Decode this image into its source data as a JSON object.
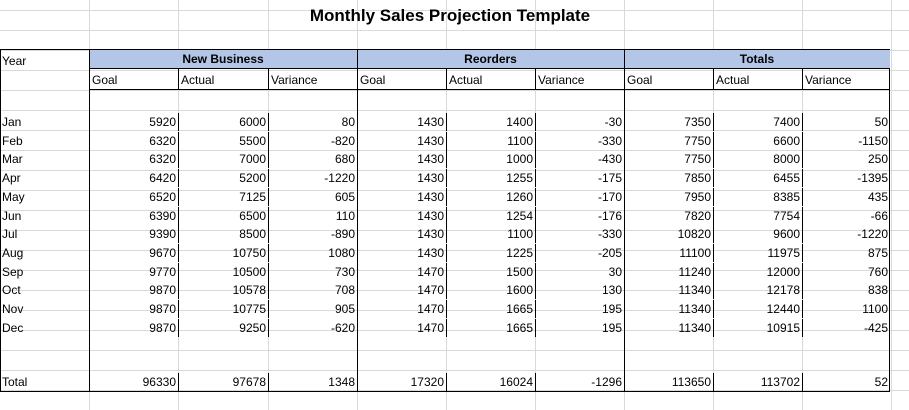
{
  "sheet": {
    "title": "Monthly Sales Projection Template",
    "year_label": "Year",
    "groups": [
      "New Business",
      "Reorders",
      "Totals"
    ],
    "subheaders": [
      "Goal",
      "Actual",
      "Variance"
    ],
    "rows": [
      {
        "month": "Jan",
        "vals": [
          "5920",
          "6000",
          "80",
          "1430",
          "1400",
          "-30",
          "7350",
          "7400",
          "50"
        ]
      },
      {
        "month": "Feb",
        "vals": [
          "6320",
          "5500",
          "-820",
          "1430",
          "1100",
          "-330",
          "7750",
          "6600",
          "-1150"
        ]
      },
      {
        "month": "Mar",
        "vals": [
          "6320",
          "7000",
          "680",
          "1430",
          "1000",
          "-430",
          "7750",
          "8000",
          "250"
        ]
      },
      {
        "month": "Apr",
        "vals": [
          "6420",
          "5200",
          "-1220",
          "1430",
          "1255",
          "-175",
          "7850",
          "6455",
          "-1395"
        ]
      },
      {
        "month": "May",
        "vals": [
          "6520",
          "7125",
          "605",
          "1430",
          "1260",
          "-170",
          "7950",
          "8385",
          "435"
        ]
      },
      {
        "month": "Jun",
        "vals": [
          "6390",
          "6500",
          "110",
          "1430",
          "1254",
          "-176",
          "7820",
          "7754",
          "-66"
        ]
      },
      {
        "month": "Jul",
        "vals": [
          "9390",
          "8500",
          "-890",
          "1430",
          "1100",
          "-330",
          "10820",
          "9600",
          "-1220"
        ]
      },
      {
        "month": "Aug",
        "vals": [
          "9670",
          "10750",
          "1080",
          "1430",
          "1225",
          "-205",
          "11100",
          "11975",
          "875"
        ]
      },
      {
        "month": "Sep",
        "vals": [
          "9770",
          "10500",
          "730",
          "1470",
          "1500",
          "30",
          "11240",
          "12000",
          "760"
        ]
      },
      {
        "month": "Oct",
        "vals": [
          "9870",
          "10578",
          "708",
          "1470",
          "1600",
          "130",
          "11340",
          "12178",
          "838"
        ]
      },
      {
        "month": "Nov",
        "vals": [
          "9870",
          "10775",
          "905",
          "1470",
          "1665",
          "195",
          "11340",
          "12440",
          "1100"
        ]
      },
      {
        "month": "Dec",
        "vals": [
          "9870",
          "9250",
          "-620",
          "1470",
          "1665",
          "195",
          "11340",
          "10915",
          "-425"
        ]
      }
    ],
    "total": {
      "label": "Total",
      "vals": [
        "96330",
        "97678",
        "1348",
        "17320",
        "16024",
        "-1296",
        "113650",
        "113702",
        "52"
      ]
    },
    "colors": {
      "group_header_fill": "#b4c6e7",
      "gridline": "#d9d9d9",
      "border": "#000000"
    }
  }
}
